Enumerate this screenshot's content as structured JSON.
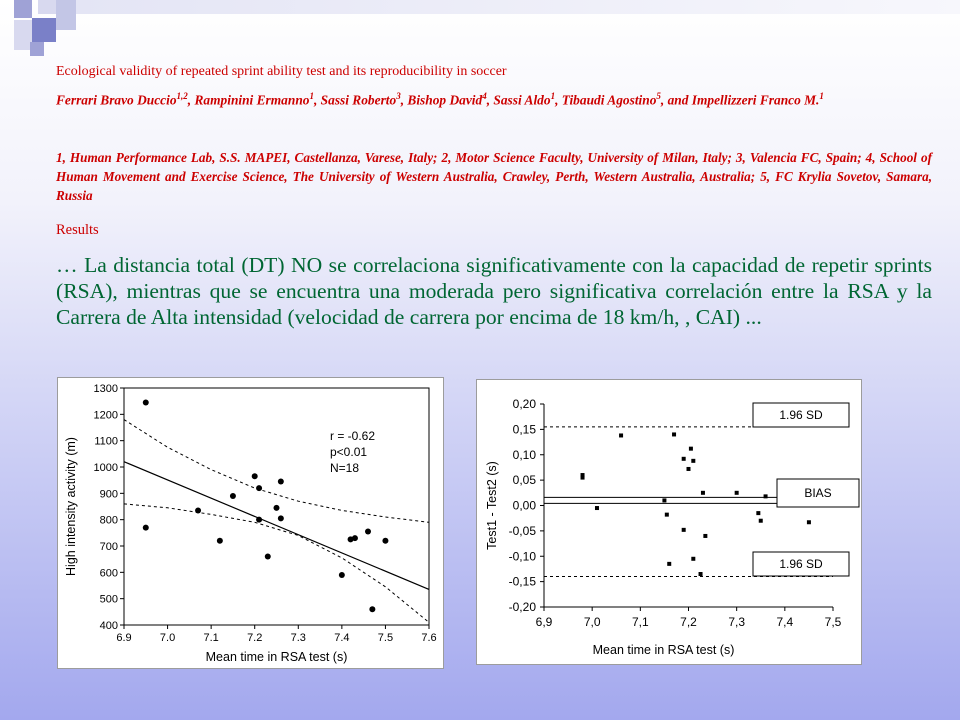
{
  "paper": {
    "title": "Ecological validity of repeated sprint ability test and its reproducibility in soccer",
    "authors": [
      {
        "name": "Ferrari Bravo Duccio",
        "sup": "1,2"
      },
      {
        "name": "Rampinini Ermanno",
        "sup": "1"
      },
      {
        "name": "Sassi Roberto",
        "sup": "3"
      },
      {
        "name": "Bishop David",
        "sup": "4"
      },
      {
        "name": "Sassi Aldo",
        "sup": "1"
      },
      {
        "name": "Tibaudi Agostino",
        "sup": "5"
      },
      {
        "name": "Impellizzeri Franco M.",
        "sup": "1"
      }
    ],
    "affiliations": "1, Human Performance Lab, S.S. MAPEI, Castellanza, Varese, Italy; 2, Motor Science Faculty, University of Milan, Italy; 3, Valencia FC, Spain; 4, School of Human Movement and Exercise Science, The University of Western Australia, Crawley, Perth, Western Australia, Australia; 5, FC Krylia Sovetov, Samara, Russia",
    "results_heading": "Results",
    "body_text": "… La distancia total (DT) NO se correlaciona significativamente con la capacidad de repetir sprints (RSA), mientras que se encuentra una moderada pero significativa correlación entre la RSA y la Carrera de Alta intensidad (velocidad de carrera por encima de 18 km/h, , CAI) ..."
  },
  "colors": {
    "heading_red": "#cc0000",
    "body_green": "#006633",
    "deco_squares": [
      "#9fa2d6",
      "#d8d9ef",
      "#c3c6e6",
      "#7a80c8"
    ]
  },
  "chart_data": [
    {
      "type": "scatter",
      "xlabel": "Mean time in RSA test (s)",
      "ylabel": "High intensity activity (m)",
      "xlim": [
        6.9,
        7.6
      ],
      "ylim": [
        400,
        1300
      ],
      "x_ticks": [
        6.9,
        7.0,
        7.1,
        7.2,
        7.3,
        7.4,
        7.5,
        7.6
      ],
      "x_tick_labels": [
        "6.9",
        "7.0",
        "7.1",
        "7.2",
        "7.3",
        "7.4",
        "7.5",
        "7.6"
      ],
      "y_ticks": [
        400,
        500,
        600,
        700,
        800,
        900,
        1000,
        1100,
        1200,
        1300
      ],
      "y_tick_labels": [
        "400",
        "500",
        "600",
        "700",
        "800",
        "900",
        "1000",
        "1100",
        "1200",
        "1300"
      ],
      "annotations": [
        "r = -0.62",
        "p<0.01",
        "N=18"
      ],
      "points": [
        {
          "x": 6.95,
          "y": 1245
        },
        {
          "x": 6.95,
          "y": 770
        },
        {
          "x": 7.07,
          "y": 835
        },
        {
          "x": 7.12,
          "y": 720
        },
        {
          "x": 7.15,
          "y": 890
        },
        {
          "x": 7.2,
          "y": 965
        },
        {
          "x": 7.21,
          "y": 920
        },
        {
          "x": 7.21,
          "y": 800
        },
        {
          "x": 7.23,
          "y": 660
        },
        {
          "x": 7.25,
          "y": 845
        },
        {
          "x": 7.26,
          "y": 945
        },
        {
          "x": 7.26,
          "y": 805
        },
        {
          "x": 7.4,
          "y": 590
        },
        {
          "x": 7.42,
          "y": 725
        },
        {
          "x": 7.43,
          "y": 730
        },
        {
          "x": 7.46,
          "y": 755
        },
        {
          "x": 7.47,
          "y": 460
        },
        {
          "x": 7.5,
          "y": 720
        }
      ],
      "regression_line": [
        [
          6.9,
          1020
        ],
        [
          7.6,
          535
        ]
      ],
      "ci_upper": [
        [
          6.9,
          1180
        ],
        [
          7.0,
          1075
        ],
        [
          7.1,
          990
        ],
        [
          7.2,
          920
        ],
        [
          7.3,
          870
        ],
        [
          7.4,
          835
        ],
        [
          7.5,
          810
        ],
        [
          7.6,
          790
        ]
      ],
      "ci_lower": [
        [
          6.9,
          860
        ],
        [
          7.0,
          845
        ],
        [
          7.1,
          820
        ],
        [
          7.2,
          790
        ],
        [
          7.3,
          740
        ],
        [
          7.4,
          655
        ],
        [
          7.5,
          545
        ],
        [
          7.6,
          410
        ]
      ]
    },
    {
      "type": "scatter",
      "xlabel": "Mean time in RSA test (s)",
      "ylabel": "Test1 - Test2 (s)",
      "xlim": [
        6.9,
        7.5
      ],
      "ylim": [
        -0.2,
        0.2
      ],
      "x_ticks": [
        6.9,
        7.0,
        7.1,
        7.2,
        7.3,
        7.4,
        7.5
      ],
      "x_tick_labels": [
        "6,9",
        "7,0",
        "7,1",
        "7,2",
        "7,3",
        "7,4",
        "7,5"
      ],
      "y_ticks": [
        -0.2,
        -0.15,
        -0.1,
        -0.05,
        0.0,
        0.05,
        0.1,
        0.15,
        0.2
      ],
      "y_tick_labels": [
        "-0,20",
        "-0,15",
        "-0,10",
        "-0,05",
        "0,00",
        "0,05",
        "0,10",
        "0,15",
        "0,20"
      ],
      "reference_lines": [
        {
          "label": "1.96 SD",
          "y": 0.155,
          "style": "dashed"
        },
        {
          "label": "BIAS",
          "y": 0.01,
          "style": "solid"
        },
        {
          "label": "1.96 SD",
          "y": -0.14,
          "style": "dashed"
        }
      ],
      "points": [
        {
          "x": 6.98,
          "y": 0.055
        },
        {
          "x": 6.98,
          "y": 0.06
        },
        {
          "x": 7.01,
          "y": -0.005
        },
        {
          "x": 7.06,
          "y": 0.138
        },
        {
          "x": 7.15,
          "y": 0.01
        },
        {
          "x": 7.155,
          "y": -0.018
        },
        {
          "x": 7.16,
          "y": -0.115
        },
        {
          "x": 7.17,
          "y": 0.14
        },
        {
          "x": 7.19,
          "y": 0.092
        },
        {
          "x": 7.19,
          "y": -0.048
        },
        {
          "x": 7.2,
          "y": 0.072
        },
        {
          "x": 7.205,
          "y": 0.112
        },
        {
          "x": 7.21,
          "y": 0.088
        },
        {
          "x": 7.21,
          "y": -0.105
        },
        {
          "x": 7.225,
          "y": -0.135
        },
        {
          "x": 7.23,
          "y": 0.025
        },
        {
          "x": 7.235,
          "y": -0.06
        },
        {
          "x": 7.3,
          "y": 0.025
        },
        {
          "x": 7.345,
          "y": -0.015
        },
        {
          "x": 7.35,
          "y": -0.03
        },
        {
          "x": 7.36,
          "y": 0.018
        },
        {
          "x": 7.45,
          "y": -0.033
        }
      ]
    }
  ]
}
